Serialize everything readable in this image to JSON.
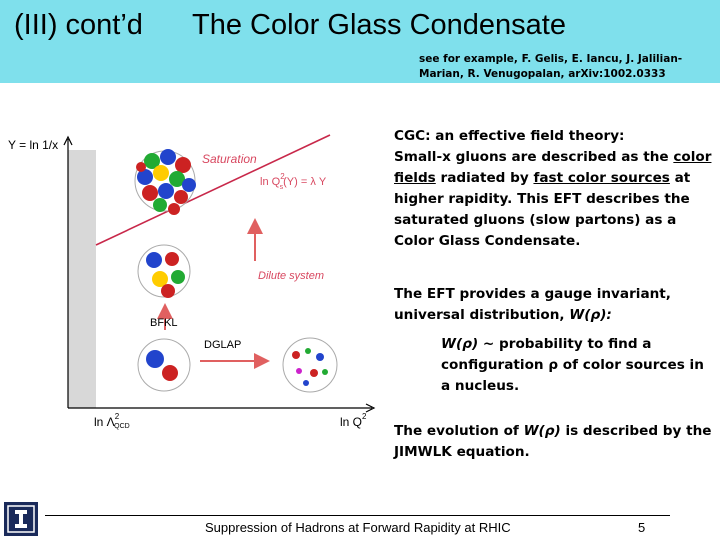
{
  "header": {
    "section": "(III) cont’d",
    "title": "The Color Glass Condensate",
    "reference": "see for example, F. Gelis, E. Iancu, J. Jalilian-Marian, R. Venugopalan, arXiv:1002.0333"
  },
  "figure": {
    "y_axis_label": "Y = ln 1/x",
    "x_axis_label": "ln Q",
    "x_axis_sup": "2",
    "origin_label": "ln Λ",
    "origin_sup": "2",
    "origin_sub": "QCD",
    "saturation_label": "Saturation",
    "saturation_eq_prefix": "ln Q",
    "saturation_eq_sup": "2",
    "saturation_eq_sub": "s",
    "saturation_eq_suffix": "(Y) = λ Y",
    "dilute_label": "Dilute system",
    "bfkl_label": "BFKL",
    "dglap_label": "DGLAP",
    "colors": {
      "arrow": "#e06060",
      "shade": "#d8d8d8",
      "line": "#c8284a",
      "label": "#d84860"
    }
  },
  "text": {
    "p1_line1": "CGC: an effective field theory:",
    "p1_a": "Small-x gluons are described as the ",
    "p1_u1": "color fields",
    "p1_b": " radiated by ",
    "p1_u2": "fast color sources",
    "p1_c": " at higher rapidity. This EFT describes the saturated gluons (slow partons) as a Color Glass Condensate.",
    "p2": "The EFT provides a gauge invariant, universal distribution, ",
    "p2_w": "W(ρ):",
    "p3_w": "W(ρ) ~",
    "p3": " probability to find a configuration ρ of color sources in a nucleus.",
    "p4_a": "The evolution of ",
    "p4_w": "W(ρ)",
    "p4_b": " is described by the JIMWLK equation."
  },
  "footer": {
    "title": "Suppression of Hadrons at Forward Rapidity at RHIC",
    "page": "5"
  }
}
